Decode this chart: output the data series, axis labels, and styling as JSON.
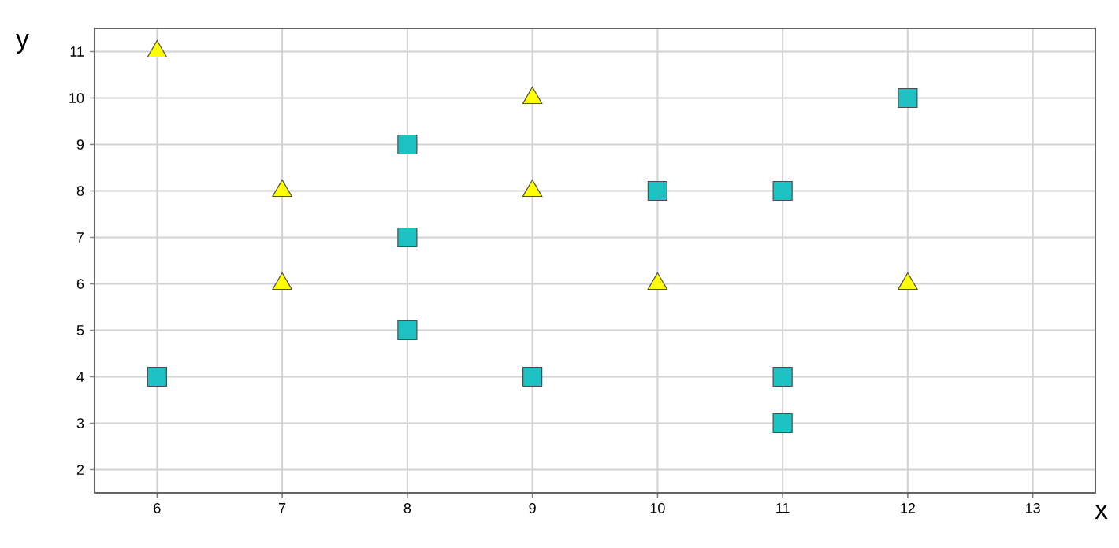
{
  "chart_data": {
    "type": "scatter",
    "xlabel": "x",
    "ylabel": "y",
    "xlim": [
      5.5,
      13.5
    ],
    "ylim": [
      1.5,
      11.5
    ],
    "xticks": [
      6,
      7,
      8,
      9,
      10,
      11,
      12,
      13
    ],
    "yticks": [
      2,
      3,
      4,
      5,
      6,
      7,
      8,
      9,
      10,
      11
    ],
    "grid": true,
    "series": [
      {
        "color": "#ffff00",
        "marker": "triangle",
        "x": [
          6,
          7,
          7,
          9,
          9,
          10,
          12
        ],
        "values": [
          11,
          8,
          6,
          10,
          8,
          6,
          6
        ]
      },
      {
        "color": "#1fc2c2",
        "marker": "square",
        "x": [
          6,
          8,
          8,
          8,
          9,
          10,
          11,
          11,
          11,
          12
        ],
        "values": [
          4,
          9,
          7,
          5,
          4,
          8,
          8,
          4,
          3,
          10
        ]
      }
    ]
  }
}
